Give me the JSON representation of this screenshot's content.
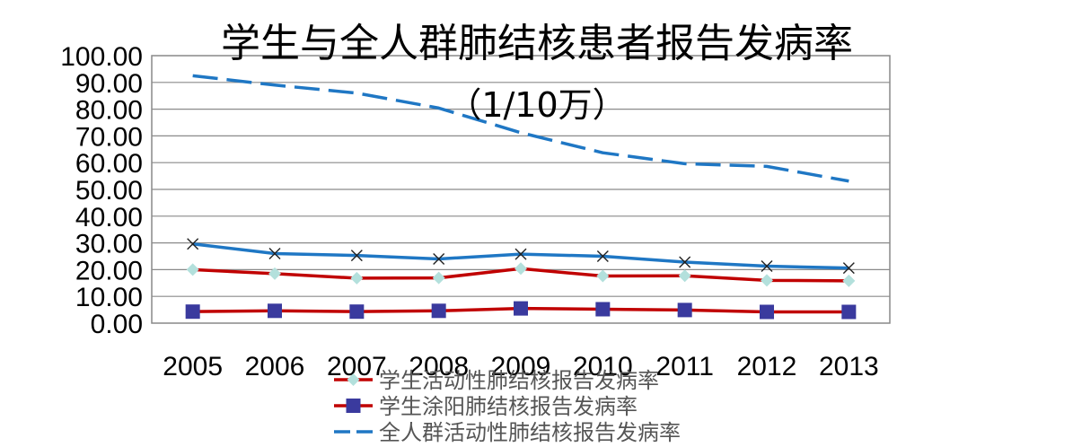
{
  "chart_data": {
    "type": "line",
    "title": "学生与全人群肺结核患者报告发病率",
    "subtitle": "（1/10万）",
    "x": [
      "2005",
      "2006",
      "2007",
      "2008",
      "2009",
      "2010",
      "2011",
      "2012",
      "2013"
    ],
    "ylim": [
      0,
      100
    ],
    "yticks": [
      "0.00",
      "10.00",
      "20.00",
      "30.00",
      "40.00",
      "50.00",
      "60.00",
      "70.00",
      "80.00",
      "90.00",
      "100.00"
    ],
    "grid": true,
    "legend_position": "bottom",
    "series": [
      {
        "name": "学生活动性肺结核报告发病率",
        "values": [
          20.0,
          18.5,
          16.8,
          16.9,
          20.4,
          17.6,
          17.7,
          16.0,
          15.8
        ],
        "color": "#c00000",
        "marker": "diamond",
        "marker_color": "#b3e0dc",
        "style": "solid"
      },
      {
        "name": "学生涂阳肺结核报告发病率",
        "values": [
          4.3,
          4.6,
          4.3,
          4.6,
          5.5,
          5.2,
          4.9,
          4.2,
          4.2
        ],
        "color": "#c00000",
        "marker": "square",
        "marker_color": "#3a3a9e",
        "style": "solid"
      },
      {
        "name": "全人群活动性肺结核报告发病率",
        "values": [
          92.5,
          89.0,
          86.0,
          80.4,
          71.2,
          63.7,
          59.6,
          58.6,
          53.1
        ],
        "color": "#1f77c4",
        "marker": "none",
        "style": "dashed"
      },
      {
        "name": "",
        "values": [
          29.6,
          26.0,
          25.3,
          24.0,
          25.8,
          25.0,
          22.8,
          21.3,
          20.6
        ],
        "color": "#1f77c4",
        "marker": "x",
        "marker_color": "#222222",
        "style": "solid"
      }
    ]
  }
}
